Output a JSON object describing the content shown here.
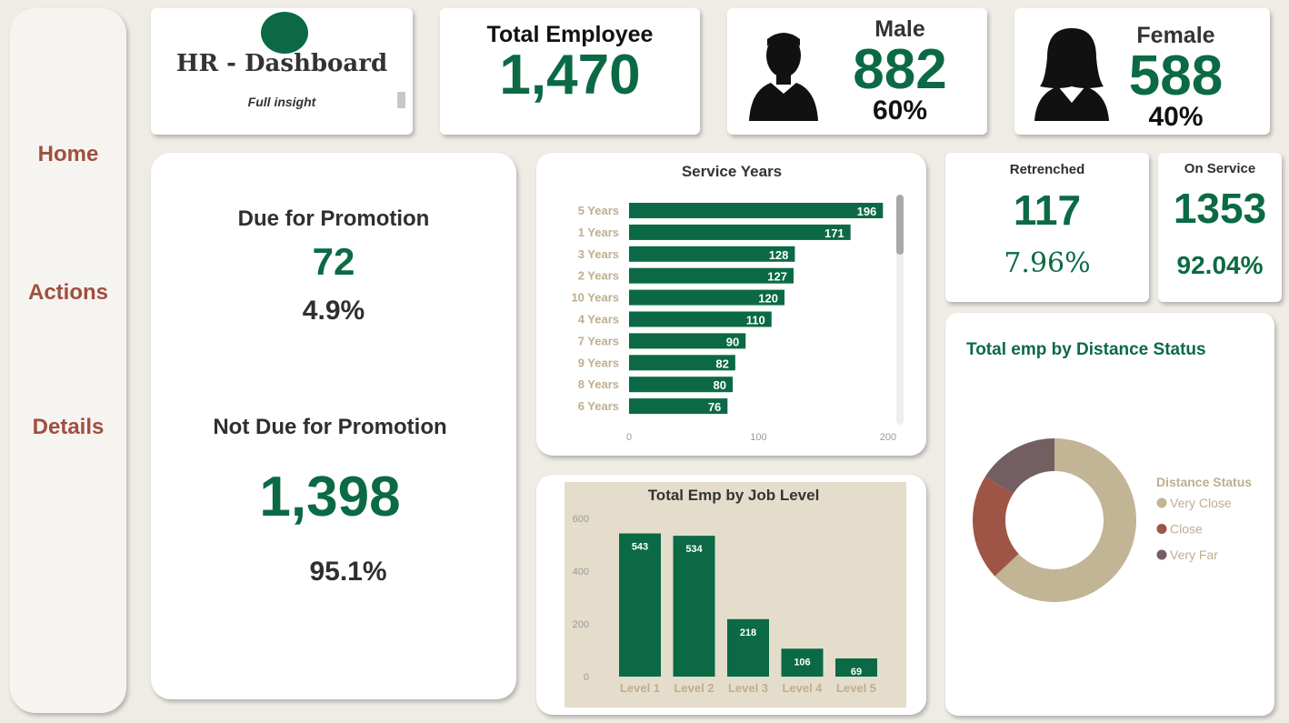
{
  "nav": {
    "home": "Home",
    "actions": "Actions",
    "details": "Details"
  },
  "title_card": {
    "title": "HR - Dashboard",
    "subtitle": "Full insight"
  },
  "total_employee": {
    "label": "Total Employee",
    "value": "1,470"
  },
  "male": {
    "label": "Male",
    "value": "882",
    "percent": "60%",
    "icon": "male-person-icon"
  },
  "female": {
    "label": "Female",
    "value": "588",
    "percent": "40%",
    "icon": "female-person-icon"
  },
  "promotion": {
    "due_label": "Due for Promotion",
    "due_value": "72",
    "due_percent": "4.9%",
    "not_due_label": "Not Due for Promotion",
    "not_due_value": "1,398",
    "not_due_percent": "95.1%"
  },
  "retrenched": {
    "label": "Retrenched",
    "value": "117",
    "percent": "7.96%"
  },
  "on_service": {
    "label": "On Service",
    "value": "1353",
    "percent": "92.04%"
  },
  "colors": {
    "green": "#0b6a45",
    "beige": "#c2b595",
    "rust": "#9e5545",
    "mauve": "#735e62",
    "nav": "#a04f40"
  },
  "chart_data": [
    {
      "type": "bar",
      "orientation": "horizontal",
      "title": "Service Years",
      "categories": [
        "5 Years",
        "1 Years",
        "3 Years",
        "2 Years",
        "10 Years",
        "4 Years",
        "7 Years",
        "9 Years",
        "8 Years",
        "6 Years"
      ],
      "values": [
        196,
        171,
        128,
        127,
        120,
        110,
        90,
        82,
        80,
        76
      ],
      "xticks": [
        "0",
        "100",
        "200"
      ],
      "xlim": [
        0,
        208
      ]
    },
    {
      "type": "bar",
      "title": "Total Emp by Job Level",
      "categories": [
        "Level 1",
        "Level 2",
        "Level 3",
        "Level 4",
        "Level 5"
      ],
      "values": [
        543,
        534,
        218,
        106,
        69
      ],
      "yticks": [
        "0",
        "200",
        "400",
        "600"
      ],
      "ylim": [
        0,
        600
      ]
    },
    {
      "type": "pie",
      "title": "Total emp by Distance Status",
      "legend_title": "Distance Status",
      "categories": [
        "Very Close",
        "Close",
        "Very Far"
      ],
      "values": [
        0.63,
        0.21,
        0.16
      ],
      "colors": [
        "#c2b595",
        "#9e5545",
        "#735e62"
      ]
    }
  ]
}
